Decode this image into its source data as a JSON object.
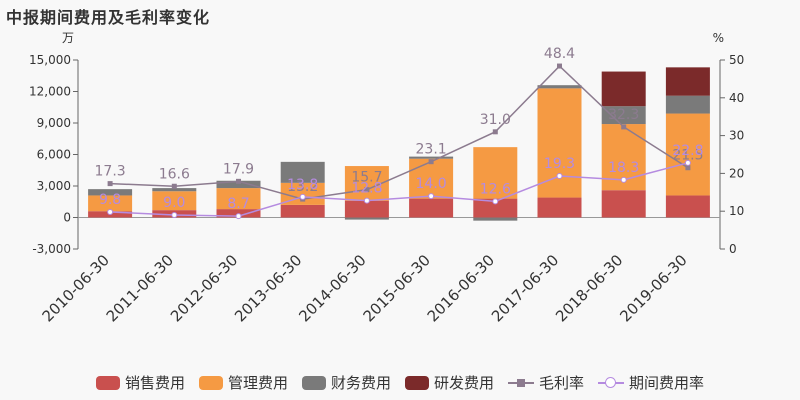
{
  "title": "中报期间费用及毛利率变化",
  "chart_data": {
    "type": "bar",
    "categories": [
      "2010-06-30",
      "2011-06-30",
      "2012-06-30",
      "2013-06-30",
      "2014-06-30",
      "2015-06-30",
      "2016-06-30",
      "2017-06-30",
      "2018-06-30",
      "2019-06-30"
    ],
    "left_unit": "万",
    "right_unit": "%",
    "ylim": [
      -3000,
      15000
    ],
    "y_ticks": [
      -3000,
      0,
      3000,
      6000,
      9000,
      12000,
      15000
    ],
    "y_tick_labels": [
      "-3,000",
      "0",
      "3,000",
      "6,000",
      "9,000",
      "12,000",
      "15,000"
    ],
    "y2lim": [
      0,
      50
    ],
    "y2_ticks": [
      0,
      10,
      20,
      30,
      40,
      50
    ],
    "y2_tick_labels": [
      "0",
      "10",
      "20",
      "30",
      "40",
      "50"
    ],
    "series": [
      {
        "name": "销售费用",
        "kind": "bar",
        "color": "#c9504e",
        "values": [
          600,
          700,
          800,
          1200,
          1600,
          1800,
          1800,
          1900,
          2600,
          2100
        ]
      },
      {
        "name": "管理费用",
        "kind": "bar",
        "color": "#f59a43",
        "values": [
          1500,
          1800,
          2000,
          2100,
          3300,
          3800,
          4900,
          10400,
          6300,
          7800
        ]
      },
      {
        "name": "财务费用",
        "kind": "bar",
        "color": "#7a7a7a",
        "values": [
          600,
          300,
          700,
          2000,
          -200,
          200,
          -300,
          300,
          1700,
          1700
        ]
      },
      {
        "name": "研发费用",
        "kind": "bar",
        "color": "#7b2a2a",
        "values": [
          0,
          0,
          0,
          0,
          0,
          0,
          0,
          0,
          3300,
          2700
        ]
      },
      {
        "name": "毛利率",
        "kind": "line",
        "axis": "right",
        "color": "#8c7b8f",
        "marker": "square",
        "values": [
          17.3,
          16.6,
          17.9,
          13.2,
          15.7,
          23.1,
          31.0,
          48.4,
          32.3,
          21.5
        ],
        "labels": [
          "17.3",
          "16.6",
          "17.9",
          "13.2",
          "15.7",
          "23.1",
          "31.0",
          "48.4",
          "32.3",
          "21.5"
        ]
      },
      {
        "name": "期间费用率",
        "kind": "line",
        "axis": "right",
        "color": "#b58be0",
        "marker": "circle",
        "values": [
          9.8,
          9.0,
          8.7,
          13.8,
          12.8,
          14.0,
          12.6,
          19.3,
          18.3,
          22.8
        ],
        "labels": [
          "9.8",
          "9.0",
          "8.7",
          "13.8",
          "12.8",
          "14.0",
          "12.6",
          "19.3",
          "18.3",
          "22.8"
        ]
      }
    ],
    "legend_position": "bottom",
    "grid": false
  }
}
